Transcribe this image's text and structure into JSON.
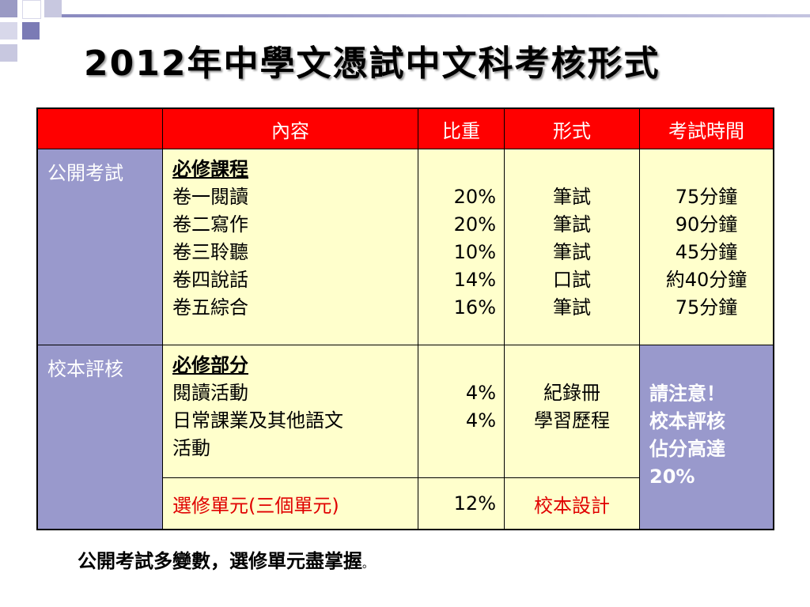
{
  "title": "2012年中學文憑試中文科考核形式",
  "table": {
    "headers": [
      "",
      "內容",
      "比重",
      "形式",
      "考試時間"
    ],
    "public_exam": {
      "label": "公開考試",
      "heading": "必修課程",
      "papers": [
        "卷一閱讀",
        "卷二寫作",
        "卷三聆聽",
        "卷四說話",
        "卷五綜合"
      ],
      "weights": [
        "20%",
        "20%",
        "10%",
        "14%",
        "16%"
      ],
      "forms": [
        "筆試",
        "筆試",
        "筆試",
        "口試",
        "筆試"
      ],
      "times": [
        "75分鐘",
        "90分鐘",
        "45分鐘",
        "約40分鐘",
        "75分鐘"
      ]
    },
    "school_based": {
      "label": "校本評核",
      "heading": "必修部分",
      "items": [
        "閱讀活動",
        "日常課業及其他語文",
        "活動"
      ],
      "weights": [
        "4%",
        "4%"
      ],
      "forms": [
        "紀錄冊",
        "學習歷程"
      ],
      "note": [
        "請注意！",
        "校本評核",
        "佔分高達",
        "20%"
      ],
      "elective": {
        "content": "選修單元(三個單元)",
        "weight": "12%",
        "form": "校本設計"
      }
    }
  },
  "footer": {
    "text": "公開考試多變數，選修單元盡掌握",
    "dot": "。"
  }
}
